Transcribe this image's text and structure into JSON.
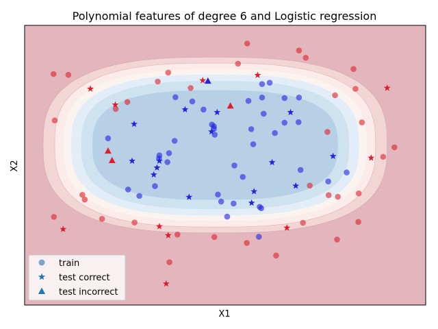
{
  "chart_data": {
    "type": "scatter",
    "title": "Polynomial features of degree 6 and Logistic regression",
    "xlabel": "X1",
    "ylabel": "X2",
    "xlim": [
      0,
      100
    ],
    "ylim": [
      0,
      100
    ],
    "grid": false,
    "ticks": "none",
    "legend": {
      "position": "lower-left",
      "entries": [
        {
          "label": "train",
          "marker": "circle",
          "color": "#1f77b4"
        },
        {
          "label": "test correct",
          "marker": "star",
          "color": "#1f77b4"
        },
        {
          "label": "test incorrect",
          "marker": "triangle",
          "color": "#1f77b4"
        }
      ]
    },
    "background_color": "#e2b6bc",
    "decision_contours": {
      "center": [
        47.5,
        57.2
      ],
      "colors": [
        "#f2d6d6",
        "#fbebe9",
        "#fbf3f0",
        "#e2edf7",
        "#cfe2ef",
        "#b7d0e6"
      ],
      "scales": [
        [
          42.9,
          31.4
        ],
        [
          40.0,
          29.3
        ],
        [
          37.8,
          27.1
        ],
        [
          35.9,
          25.2
        ],
        [
          33.4,
          22.9
        ],
        [
          30.6,
          19.6
        ]
      ]
    },
    "class_colors": {
      "inside": "#2323e0",
      "outside": "#dd1f2a"
    },
    "series": [
      {
        "name": "train",
        "marker": "circle",
        "points": [
          {
            "x": 37.6,
            "y": 74.3,
            "c": 1
          },
          {
            "x": 41.8,
            "y": 72.8,
            "c": 1
          },
          {
            "x": 44.6,
            "y": 69.9,
            "c": 1
          },
          {
            "x": 46.7,
            "y": 64.5,
            "c": 1
          },
          {
            "x": 47.2,
            "y": 63.9,
            "c": 1
          },
          {
            "x": 47.4,
            "y": 60.9,
            "c": 1
          },
          {
            "x": 55.8,
            "y": 73.0,
            "c": 1
          },
          {
            "x": 59.2,
            "y": 74.2,
            "c": 1
          },
          {
            "x": 56.5,
            "y": 62.9,
            "c": 1
          },
          {
            "x": 57.0,
            "y": 57.5,
            "c": 1
          },
          {
            "x": 64.8,
            "y": 74.0,
            "c": 1
          },
          {
            "x": 64.8,
            "y": 65.2,
            "c": 1
          },
          {
            "x": 62.4,
            "y": 61.5,
            "c": 1
          },
          {
            "x": 59.6,
            "y": 68.4,
            "c": 1
          },
          {
            "x": 37.4,
            "y": 58.7,
            "c": 1
          },
          {
            "x": 36.0,
            "y": 54.3,
            "c": 1
          },
          {
            "x": 33.5,
            "y": 52.4,
            "c": 1
          },
          {
            "x": 35.6,
            "y": 51.1,
            "c": 1
          },
          {
            "x": 20.8,
            "y": 59.6,
            "c": 1
          },
          {
            "x": 52.3,
            "y": 49.9,
            "c": 1
          },
          {
            "x": 54.4,
            "y": 45.8,
            "c": 1
          },
          {
            "x": 68.8,
            "y": 48.3,
            "c": 1
          },
          {
            "x": 32.5,
            "y": 42.5,
            "c": 1
          },
          {
            "x": 25.8,
            "y": 41.3,
            "c": 1
          },
          {
            "x": 28.6,
            "y": 39.0,
            "c": 1
          },
          {
            "x": 48.2,
            "y": 39.5,
            "c": 1
          },
          {
            "x": 49.0,
            "y": 37.0,
            "c": 1
          },
          {
            "x": 52.1,
            "y": 36.3,
            "c": 1
          },
          {
            "x": 50.5,
            "y": 31.6,
            "c": 1
          },
          {
            "x": 58.6,
            "y": 35.1,
            "c": 1
          },
          {
            "x": 59.0,
            "y": 34.6,
            "c": 1
          },
          {
            "x": 75.7,
            "y": 44.2,
            "c": 1
          },
          {
            "x": 80.3,
            "y": 47.4,
            "c": 1
          },
          {
            "x": 58.4,
            "y": 24.4,
            "c": 1
          },
          {
            "x": 68.4,
            "y": 74.2,
            "c": 1
          },
          {
            "x": 68.3,
            "y": 65.4,
            "c": 1
          },
          {
            "x": 61.1,
            "y": 79.5,
            "c": 1
          },
          {
            "x": 59.2,
            "y": 79.0,
            "c": 1
          },
          {
            "x": 47.2,
            "y": 63.0,
            "c": 1
          },
          {
            "x": 33.6,
            "y": 53.5,
            "c": 1
          },
          {
            "x": 7.2,
            "y": 82.6,
            "c": 0
          },
          {
            "x": 10.9,
            "y": 82.3,
            "c": 0
          },
          {
            "x": 7.5,
            "y": 66.0,
            "c": 0
          },
          {
            "x": 25.6,
            "y": 72.6,
            "c": 0
          },
          {
            "x": 22.7,
            "y": 70.1,
            "c": 0
          },
          {
            "x": 33.2,
            "y": 79.9,
            "c": 0
          },
          {
            "x": 35.8,
            "y": 83.1,
            "c": 0
          },
          {
            "x": 41.4,
            "y": 77.6,
            "c": 0
          },
          {
            "x": 53.2,
            "y": 86.3,
            "c": 0
          },
          {
            "x": 55.5,
            "y": 93.5,
            "c": 0
          },
          {
            "x": 68.4,
            "y": 91.0,
            "c": 0
          },
          {
            "x": 70.1,
            "y": 88.4,
            "c": 0
          },
          {
            "x": 82.0,
            "y": 84.4,
            "c": 0
          },
          {
            "x": 82.5,
            "y": 77.3,
            "c": 0
          },
          {
            "x": 77.4,
            "y": 75.0,
            "c": 0
          },
          {
            "x": 84.1,
            "y": 65.3,
            "c": 0
          },
          {
            "x": 75.5,
            "y": 61.9,
            "c": 0
          },
          {
            "x": 92.2,
            "y": 56.4,
            "c": 0
          },
          {
            "x": 89.4,
            "y": 53.0,
            "c": 0
          },
          {
            "x": 14.4,
            "y": 39.4,
            "c": 0
          },
          {
            "x": 15.0,
            "y": 37.7,
            "c": 0
          },
          {
            "x": 7.3,
            "y": 31.5,
            "c": 0
          },
          {
            "x": 19.3,
            "y": 30.8,
            "c": 0
          },
          {
            "x": 27.4,
            "y": 29.5,
            "c": 0
          },
          {
            "x": 38.1,
            "y": 25.2,
            "c": 0
          },
          {
            "x": 47.3,
            "y": 24.3,
            "c": 0
          },
          {
            "x": 55.4,
            "y": 22.2,
            "c": 0
          },
          {
            "x": 69.4,
            "y": 29.4,
            "c": 0
          },
          {
            "x": 71.1,
            "y": 42.7,
            "c": 0
          },
          {
            "x": 75.8,
            "y": 39.3,
            "c": 0
          },
          {
            "x": 78.1,
            "y": 38.7,
            "c": 0
          },
          {
            "x": 83.3,
            "y": 39.9,
            "c": 0
          },
          {
            "x": 83.2,
            "y": 29.7,
            "c": 0
          },
          {
            "x": 77.9,
            "y": 23.4,
            "c": 0
          },
          {
            "x": 62.7,
            "y": 17.7,
            "c": 0
          },
          {
            "x": 36.1,
            "y": 15.3,
            "c": 0
          }
        ]
      },
      {
        "name": "test correct",
        "marker": "star",
        "points": [
          {
            "x": 40.0,
            "y": 69.9,
            "c": 1
          },
          {
            "x": 48.0,
            "y": 68.9,
            "c": 1
          },
          {
            "x": 46.6,
            "y": 62.0,
            "c": 1
          },
          {
            "x": 27.3,
            "y": 64.7,
            "c": 1
          },
          {
            "x": 66.3,
            "y": 68.9,
            "c": 1
          },
          {
            "x": 26.8,
            "y": 51.5,
            "c": 1
          },
          {
            "x": 33.6,
            "y": 51.5,
            "c": 1
          },
          {
            "x": 33.0,
            "y": 49.1,
            "c": 1
          },
          {
            "x": 32.2,
            "y": 46.6,
            "c": 1
          },
          {
            "x": 61.7,
            "y": 51.0,
            "c": 1
          },
          {
            "x": 76.9,
            "y": 53.2,
            "c": 1
          },
          {
            "x": 67.6,
            "y": 42.6,
            "c": 1
          },
          {
            "x": 57.2,
            "y": 40.6,
            "c": 1
          },
          {
            "x": 41.0,
            "y": 38.6,
            "c": 1
          },
          {
            "x": 56.6,
            "y": 36.5,
            "c": 1
          },
          {
            "x": 16.4,
            "y": 77.3,
            "c": 0
          },
          {
            "x": 22.6,
            "y": 71.6,
            "c": 0
          },
          {
            "x": 58.1,
            "y": 82.2,
            "c": 0
          },
          {
            "x": 90.4,
            "y": 77.6,
            "c": 0
          },
          {
            "x": 86.4,
            "y": 52.6,
            "c": 0
          },
          {
            "x": 9.6,
            "y": 27.1,
            "c": 0
          },
          {
            "x": 33.6,
            "y": 28.1,
            "c": 0
          },
          {
            "x": 35.8,
            "y": 24.9,
            "c": 0
          },
          {
            "x": 65.4,
            "y": 27.6,
            "c": 0
          },
          {
            "x": 35.3,
            "y": 7.6,
            "c": 0
          },
          {
            "x": 44.4,
            "y": 80.3,
            "c": 0
          }
        ]
      },
      {
        "name": "test incorrect",
        "marker": "triangle",
        "points": [
          {
            "x": 45.7,
            "y": 80.1,
            "c": 1
          },
          {
            "x": 51.3,
            "y": 71.2,
            "c": 0
          },
          {
            "x": 20.8,
            "y": 55.1,
            "c": 0
          },
          {
            "x": 21.8,
            "y": 51.7,
            "c": 0
          }
        ]
      }
    ]
  }
}
